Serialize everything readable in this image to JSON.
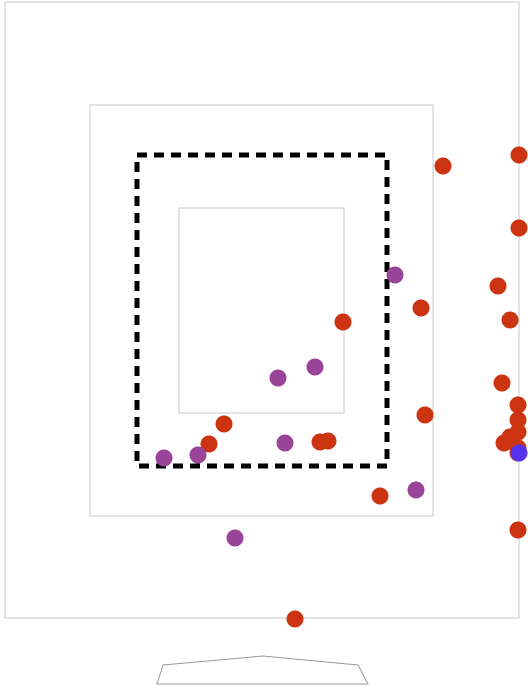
{
  "scene": {
    "background": "#ffffff",
    "line_color": "#c8c8c8",
    "dashed_color": "#000000"
  },
  "colors": {
    "red": "#cc3311",
    "purple": "#994499",
    "blue": "#5533ee"
  },
  "zones": [
    {
      "name": "outer-boundary",
      "style": "thin"
    },
    {
      "name": "middle-zone",
      "style": "thin"
    },
    {
      "name": "dashed-zone",
      "style": "dashed"
    },
    {
      "name": "inner-zone",
      "style": "thin"
    }
  ],
  "markers": [
    {
      "team": "red"
    },
    {
      "team": "red"
    },
    {
      "team": "red"
    },
    {
      "team": "red"
    },
    {
      "team": "red"
    },
    {
      "team": "red"
    },
    {
      "team": "red"
    },
    {
      "team": "red"
    },
    {
      "team": "red"
    },
    {
      "team": "red"
    },
    {
      "team": "red"
    },
    {
      "team": "red"
    },
    {
      "team": "red"
    },
    {
      "team": "red"
    },
    {
      "team": "red"
    },
    {
      "team": "red"
    },
    {
      "team": "red"
    },
    {
      "team": "red"
    },
    {
      "team": "red"
    },
    {
      "team": "red"
    },
    {
      "team": "red"
    },
    {
      "team": "red"
    },
    {
      "team": "red"
    },
    {
      "team": "purple"
    },
    {
      "team": "purple"
    },
    {
      "team": "purple"
    },
    {
      "team": "purple"
    },
    {
      "team": "purple"
    },
    {
      "team": "purple"
    },
    {
      "team": "purple"
    },
    {
      "team": "purple"
    },
    {
      "team": "blue"
    }
  ]
}
